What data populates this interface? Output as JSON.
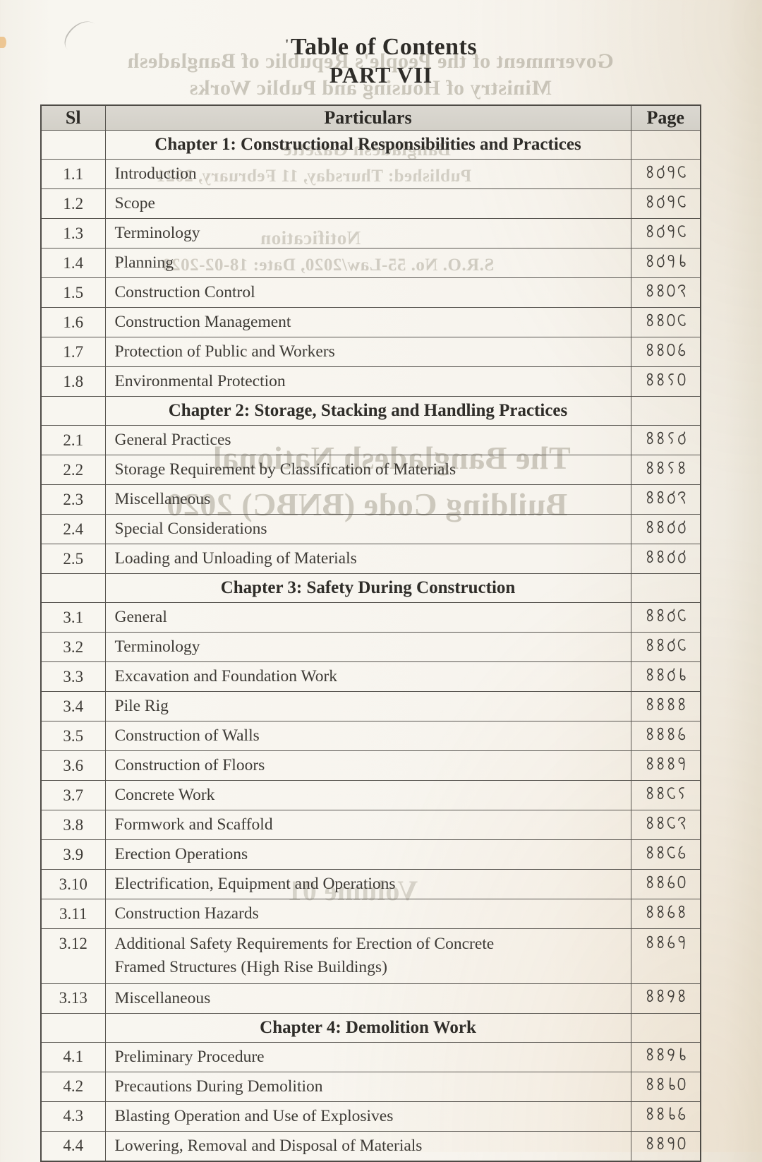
{
  "page": {
    "title": "Table of Contents",
    "subtitle": "PART VII",
    "tick_mark": "'"
  },
  "table": {
    "headers": {
      "sl": "Sl",
      "particulars": "Particulars",
      "page": "Page"
    },
    "sections": [
      {
        "chapter": "Chapter 1: Constructional Responsibilities and Practices",
        "rows": [
          {
            "sl": "1.1",
            "title": "Introduction",
            "page": "৪৩৯৫"
          },
          {
            "sl": "1.2",
            "title": "Scope",
            "page": "৪৩৯৫"
          },
          {
            "sl": "1.3",
            "title": "Terminology",
            "page": "৪৩৯৫"
          },
          {
            "sl": "1.4",
            "title": "Planning",
            "page": "৪৩৯৮"
          },
          {
            "sl": "1.5",
            "title": "Construction Control",
            "page": "৪৪০২"
          },
          {
            "sl": "1.6",
            "title": "Construction Management",
            "page": "৪৪০৫"
          },
          {
            "sl": "1.7",
            "title": "Protection of Public and Workers",
            "page": "৪৪০৬"
          },
          {
            "sl": "1.8",
            "title": "Environmental Protection",
            "page": "৪৪১০"
          }
        ]
      },
      {
        "chapter": "Chapter 2: Storage, Stacking and Handling Practices",
        "rows": [
          {
            "sl": "2.1",
            "title": "General Practices",
            "page": "৪৪১৩"
          },
          {
            "sl": "2.2",
            "title": "Storage Requirement by Classification of Materials",
            "page": "৪৪১৪"
          },
          {
            "sl": "2.3",
            "title": "Miscellaneous",
            "page": "৪৪৩২"
          },
          {
            "sl": "2.4",
            "title": "Special Considerations",
            "page": "৪৪৩৩"
          },
          {
            "sl": "2.5",
            "title": "Loading and Unloading of Materials",
            "page": "৪৪৩৩"
          }
        ]
      },
      {
        "chapter": "Chapter 3: Safety During Construction",
        "rows": [
          {
            "sl": "3.1",
            "title": "General",
            "page": "৪৪৩৫"
          },
          {
            "sl": "3.2",
            "title": "Terminology",
            "page": "৪৪৩৫"
          },
          {
            "sl": "3.3",
            "title": "Excavation and Foundation Work",
            "page": "৪৪৩৮"
          },
          {
            "sl": "3.4",
            "title": "Pile Rig",
            "page": "৪৪৪৪"
          },
          {
            "sl": "3.5",
            "title": "Construction of Walls",
            "page": "৪৪৪৬"
          },
          {
            "sl": "3.6",
            "title": "Construction of Floors",
            "page": "৪৪৪৯"
          },
          {
            "sl": "3.7",
            "title": "Concrete Work",
            "page": "৪৪৫১"
          },
          {
            "sl": "3.8",
            "title": "Formwork and Scaffold",
            "page": "৪৪৫২"
          },
          {
            "sl": "3.9",
            "title": "Erection Operations",
            "page": "৪৪৫৬"
          },
          {
            "sl": "3.10",
            "title": "Electrification, Equipment and Operations",
            "page": "৪৪৬০"
          },
          {
            "sl": "3.11",
            "title": "Construction Hazards",
            "page": "৪৪৬৪"
          },
          {
            "sl": "3.12",
            "title_lines": [
              "Additional Safety Requirements for Erection of Concrete",
              "Framed Structures (High Rise Buildings)"
            ],
            "page": "৪৪৬৯"
          },
          {
            "sl": "3.13",
            "title": "Miscellaneous",
            "page": "৪৪৭৪"
          }
        ]
      },
      {
        "chapter": "Chapter 4: Demolition Work",
        "rows": [
          {
            "sl": "4.1",
            "title": "Preliminary Procedure",
            "page": "৪৪৭৮"
          },
          {
            "sl": "4.2",
            "title": "Precautions During Demolition",
            "page": "৪৪৮০"
          },
          {
            "sl": "4.3",
            "title": "Blasting Operation and Use of Explosives",
            "page": "৪৪৮৬"
          },
          {
            "sl": "4.4",
            "title": "Lowering, Removal and Disposal of Materials",
            "page": "৪৪৯০"
          }
        ]
      }
    ]
  },
  "bleedthrough": {
    "lines": [
      "Government of the People's Republic of Bangladesh",
      "Ministry of Housing and Public Works",
      "Bangladesh Gazette",
      "Published: Thursday, 11 February, 2021",
      "Notification",
      "S.R.O. No. 55-Law/2020, Date: 18-02-2020",
      "The Bangladesh National",
      "Building Code (BNBC) 2020",
      "Volume 01"
    ]
  }
}
